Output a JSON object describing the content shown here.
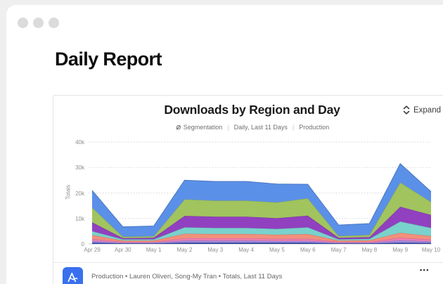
{
  "window": {
    "heading": "Daily Report"
  },
  "card": {
    "title": "Downloads by Region and Day",
    "expand_label": "Expand",
    "meta": {
      "chart_type": "Segmentation",
      "range": "Daily, Last 11 Days",
      "environment": "Production",
      "separator": "|"
    },
    "footer": {
      "text": "Production • Lauren Oliveri, Song-My Tran • Totals, Last 11 Days",
      "menu_label": "•••"
    }
  },
  "colors": {
    "app_icon_blue": "#3a70ee",
    "grid_line": "#d9d9d9",
    "axis_text": "#8f8f8f"
  },
  "chart_data": {
    "type": "area",
    "stacked": true,
    "title": "Downloads by Region and Day",
    "xlabel": "",
    "ylabel": "Totals",
    "ylim": [
      0,
      40000
    ],
    "grid": true,
    "legend": "none",
    "yticks": [
      {
        "value": 0,
        "label": "0"
      },
      {
        "value": 10000,
        "label": "10k"
      },
      {
        "value": 20000,
        "label": "20k"
      },
      {
        "value": 30000,
        "label": "30k"
      },
      {
        "value": 40000,
        "label": "40k"
      }
    ],
    "categories": [
      "Apr 29",
      "Apr 30",
      "May 1",
      "May 2",
      "May 3",
      "May 4",
      "May 5",
      "May 6",
      "May 7",
      "May 8",
      "May 9",
      "May 10"
    ],
    "series": [
      {
        "name": "navy",
        "color": "#32489f",
        "values": [
          500,
          200,
          200,
          500,
          500,
          500,
          500,
          500,
          200,
          200,
          500,
          400
        ]
      },
      {
        "name": "violet",
        "color": "#a18ae0",
        "values": [
          700,
          300,
          300,
          800,
          800,
          800,
          700,
          700,
          300,
          300,
          900,
          600
        ]
      },
      {
        "name": "pink",
        "color": "#ef7fb1",
        "values": [
          800,
          300,
          300,
          900,
          900,
          900,
          800,
          800,
          300,
          300,
          1000,
          700
        ]
      },
      {
        "name": "salmon",
        "color": "#f2907b",
        "values": [
          1500,
          500,
          500,
          1800,
          1700,
          1700,
          1600,
          1900,
          500,
          600,
          2000,
          1400
        ]
      },
      {
        "name": "teal",
        "color": "#79d2cc",
        "values": [
          1500,
          500,
          500,
          2500,
          2400,
          2400,
          2300,
          2600,
          500,
          600,
          4400,
          3200
        ]
      },
      {
        "name": "purple",
        "color": "#9140bf",
        "values": [
          3500,
          500,
          600,
          4500,
          4400,
          4400,
          4200,
          4600,
          600,
          700,
          5800,
          5100
        ]
      },
      {
        "name": "green",
        "color": "#a1c45f",
        "values": [
          5800,
          500,
          600,
          6500,
          6300,
          6300,
          6200,
          6800,
          700,
          800,
          9500,
          5100
        ]
      },
      {
        "name": "blue",
        "color": "#5b90e8",
        "values": [
          6700,
          3900,
          4000,
          7500,
          7500,
          7500,
          7200,
          5500,
          4300,
          4500,
          7400,
          4000
        ]
      }
    ]
  }
}
